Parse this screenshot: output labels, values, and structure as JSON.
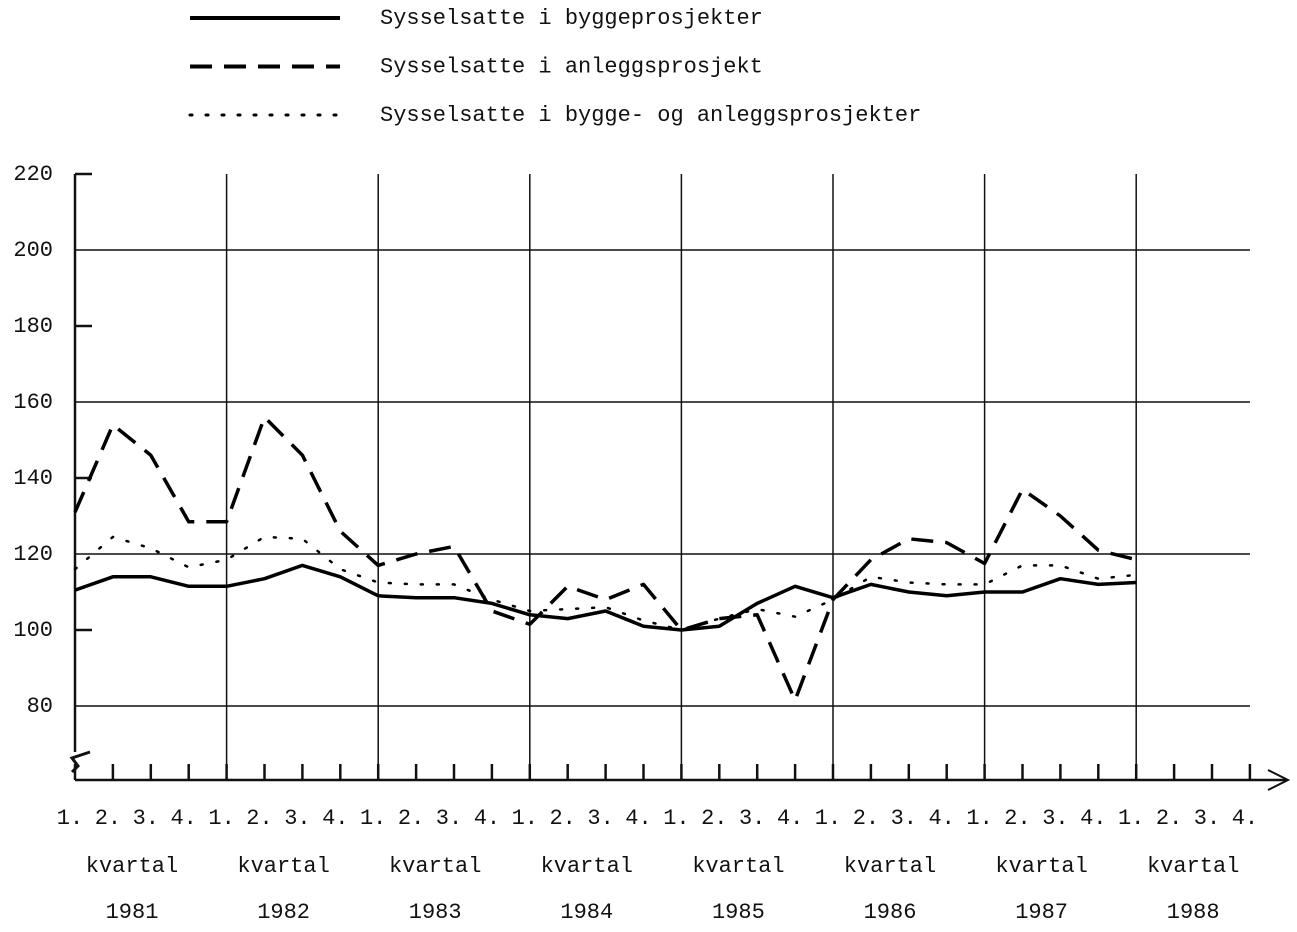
{
  "chart_data": {
    "type": "line",
    "categories": [
      "1.",
      "2.",
      "3.",
      "4.",
      "1.",
      "2.",
      "3.",
      "4.",
      "1.",
      "2.",
      "3.",
      "4.",
      "1.",
      "2.",
      "3.",
      "4.",
      "1.",
      "2.",
      "3.",
      "4.",
      "1.",
      "2.",
      "3.",
      "4.",
      "1.",
      "2.",
      "3.",
      "4.",
      "1.",
      "2.",
      "3.",
      "4."
    ],
    "period_label": "kvartal",
    "years": [
      "1981",
      "1982",
      "1983",
      "1984",
      "1985",
      "1986",
      "1987",
      "1988"
    ],
    "series": [
      {
        "name": "Sysselsatte i byggeprosjekter",
        "color": "#000000",
        "style": "solid",
        "values": [
          110.5,
          114,
          114,
          111.5,
          111.5,
          113.5,
          117,
          114,
          109,
          108.5,
          108.5,
          107,
          104,
          103,
          105,
          101,
          100,
          101,
          107,
          111.5,
          108.5,
          112,
          110,
          109,
          110,
          110,
          113.5,
          112,
          112.5,
          null,
          null,
          null
        ]
      },
      {
        "name": "Sysselsatte i anleggsprosjekt",
        "color": "#000000",
        "style": "dashed",
        "values": [
          131,
          154,
          146,
          128.5,
          128.5,
          156,
          146,
          126,
          117,
          120,
          122,
          105,
          101.5,
          111.5,
          108,
          112,
          100,
          103,
          104,
          81.5,
          108,
          118.5,
          124,
          123,
          117.5,
          137,
          130,
          121,
          118.5,
          null,
          null,
          null
        ]
      },
      {
        "name": "Sysselsatte i bygge- og anleggsprosjekter",
        "color": "#000000",
        "style": "dotted",
        "values": [
          116,
          124.5,
          121.5,
          116.5,
          118.5,
          124.5,
          124,
          116,
          112.5,
          112,
          112,
          108,
          105,
          105.5,
          106,
          102.5,
          100,
          103,
          105.5,
          103.5,
          108,
          114,
          112.5,
          112,
          112,
          117,
          117,
          113.5,
          114.5,
          null,
          null,
          null
        ]
      }
    ],
    "ylim": [
      60,
      220
    ],
    "yticks": [
      80,
      100,
      120,
      140,
      160,
      180,
      200,
      220
    ],
    "grid": true
  }
}
